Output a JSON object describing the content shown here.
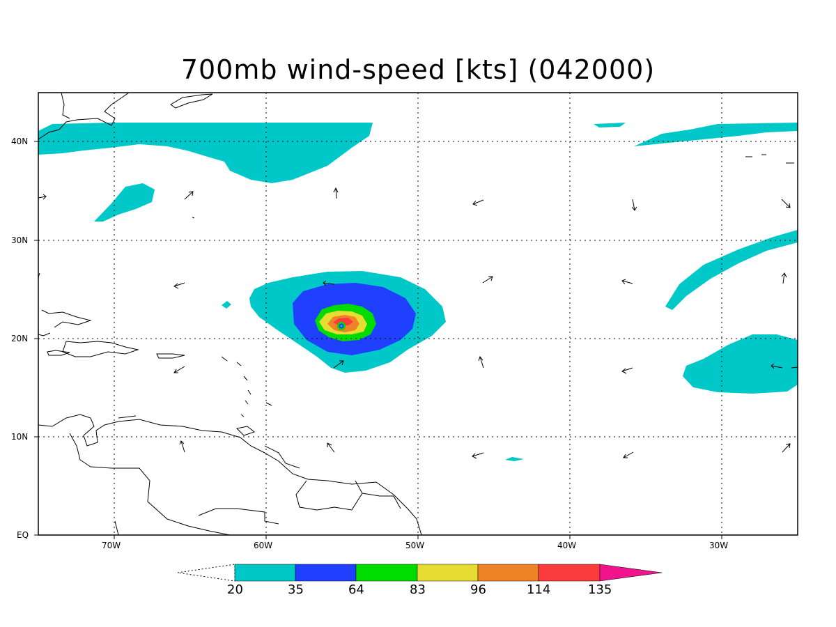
{
  "title": "700mb wind-speed [kts] (042000)",
  "axes": {
    "x_ticks": [
      "70W",
      "60W",
      "50W",
      "40W",
      "30W"
    ],
    "y_ticks": [
      "40N",
      "30N",
      "20N",
      "10N",
      "EQ"
    ]
  },
  "colorbar": {
    "labels": [
      "20",
      "35",
      "64",
      "83",
      "96",
      "114",
      "135"
    ],
    "colors": [
      "#00c8c8",
      "#2040ff",
      "#00dc00",
      "#e6dc32",
      "#f08228",
      "#fa3c3c",
      "#f0148c"
    ]
  },
  "colors": {
    "fill_20": "#00c8c8",
    "fill_35": "#2040ff",
    "fill_64": "#00dc00",
    "fill_83": "#e6dc32",
    "fill_96": "#f08228",
    "fill_114": "#fa3c3c",
    "coast": "#000000"
  }
}
